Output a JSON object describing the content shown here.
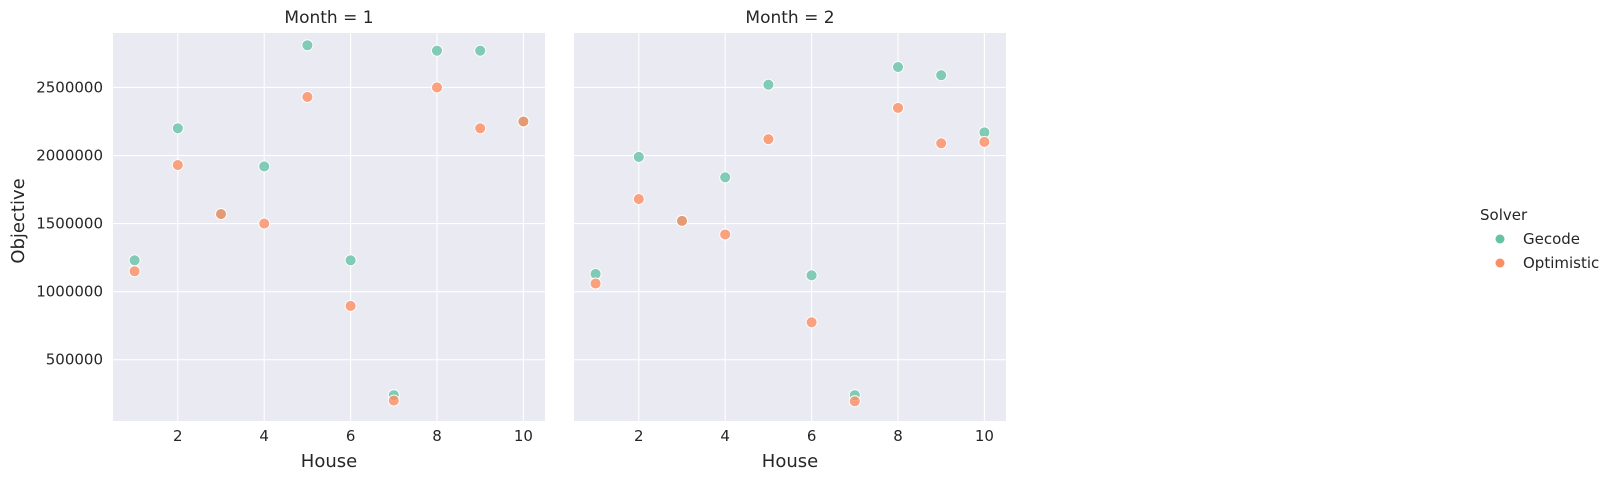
{
  "chart_data": {
    "type": "scatter",
    "xlabel": "House",
    "ylabel": "Objective",
    "xlim": [
      0.5,
      10.5
    ],
    "ylim": [
      50000,
      2900000
    ],
    "x_ticks": [
      2,
      4,
      6,
      8,
      10
    ],
    "y_ticks": [
      500000,
      1000000,
      1500000,
      2000000,
      2500000
    ],
    "grid": true,
    "legend": {
      "title": "Solver",
      "placement": "right",
      "entries": [
        "Gecode",
        "Optimistic"
      ]
    },
    "colors": {
      "Gecode": "#66c2a5",
      "Optimistic": "#fc8d62",
      "background": "#eaeaf2"
    },
    "facets": [
      {
        "title": "Month = 1",
        "series": [
          {
            "name": "Gecode",
            "x": [
              1,
              2,
              3,
              4,
              5,
              6,
              7,
              8,
              9,
              10
            ],
            "y": [
              1230000,
              2200000,
              1570000,
              1920000,
              2810000,
              1230000,
              240000,
              2770000,
              2770000,
              2250000
            ]
          },
          {
            "name": "Optimistic",
            "x": [
              1,
              2,
              3,
              4,
              5,
              6,
              7,
              8,
              9,
              10
            ],
            "y": [
              1150000,
              1930000,
              1570000,
              1500000,
              2430000,
              895000,
              200000,
              2500000,
              2200000,
              2250000
            ]
          }
        ]
      },
      {
        "title": "Month = 2",
        "series": [
          {
            "name": "Gecode",
            "x": [
              1,
              2,
              3,
              4,
              5,
              6,
              7,
              8,
              9,
              10
            ],
            "y": [
              1130000,
              1990000,
              1520000,
              1840000,
              2520000,
              1120000,
              240000,
              2650000,
              2590000,
              2170000
            ]
          },
          {
            "name": "Optimistic",
            "x": [
              1,
              2,
              3,
              4,
              5,
              6,
              7,
              8,
              9,
              10
            ],
            "y": [
              1060000,
              1680000,
              1520000,
              1420000,
              2120000,
              775000,
              195000,
              2350000,
              2090000,
              2100000
            ]
          }
        ]
      }
    ]
  }
}
